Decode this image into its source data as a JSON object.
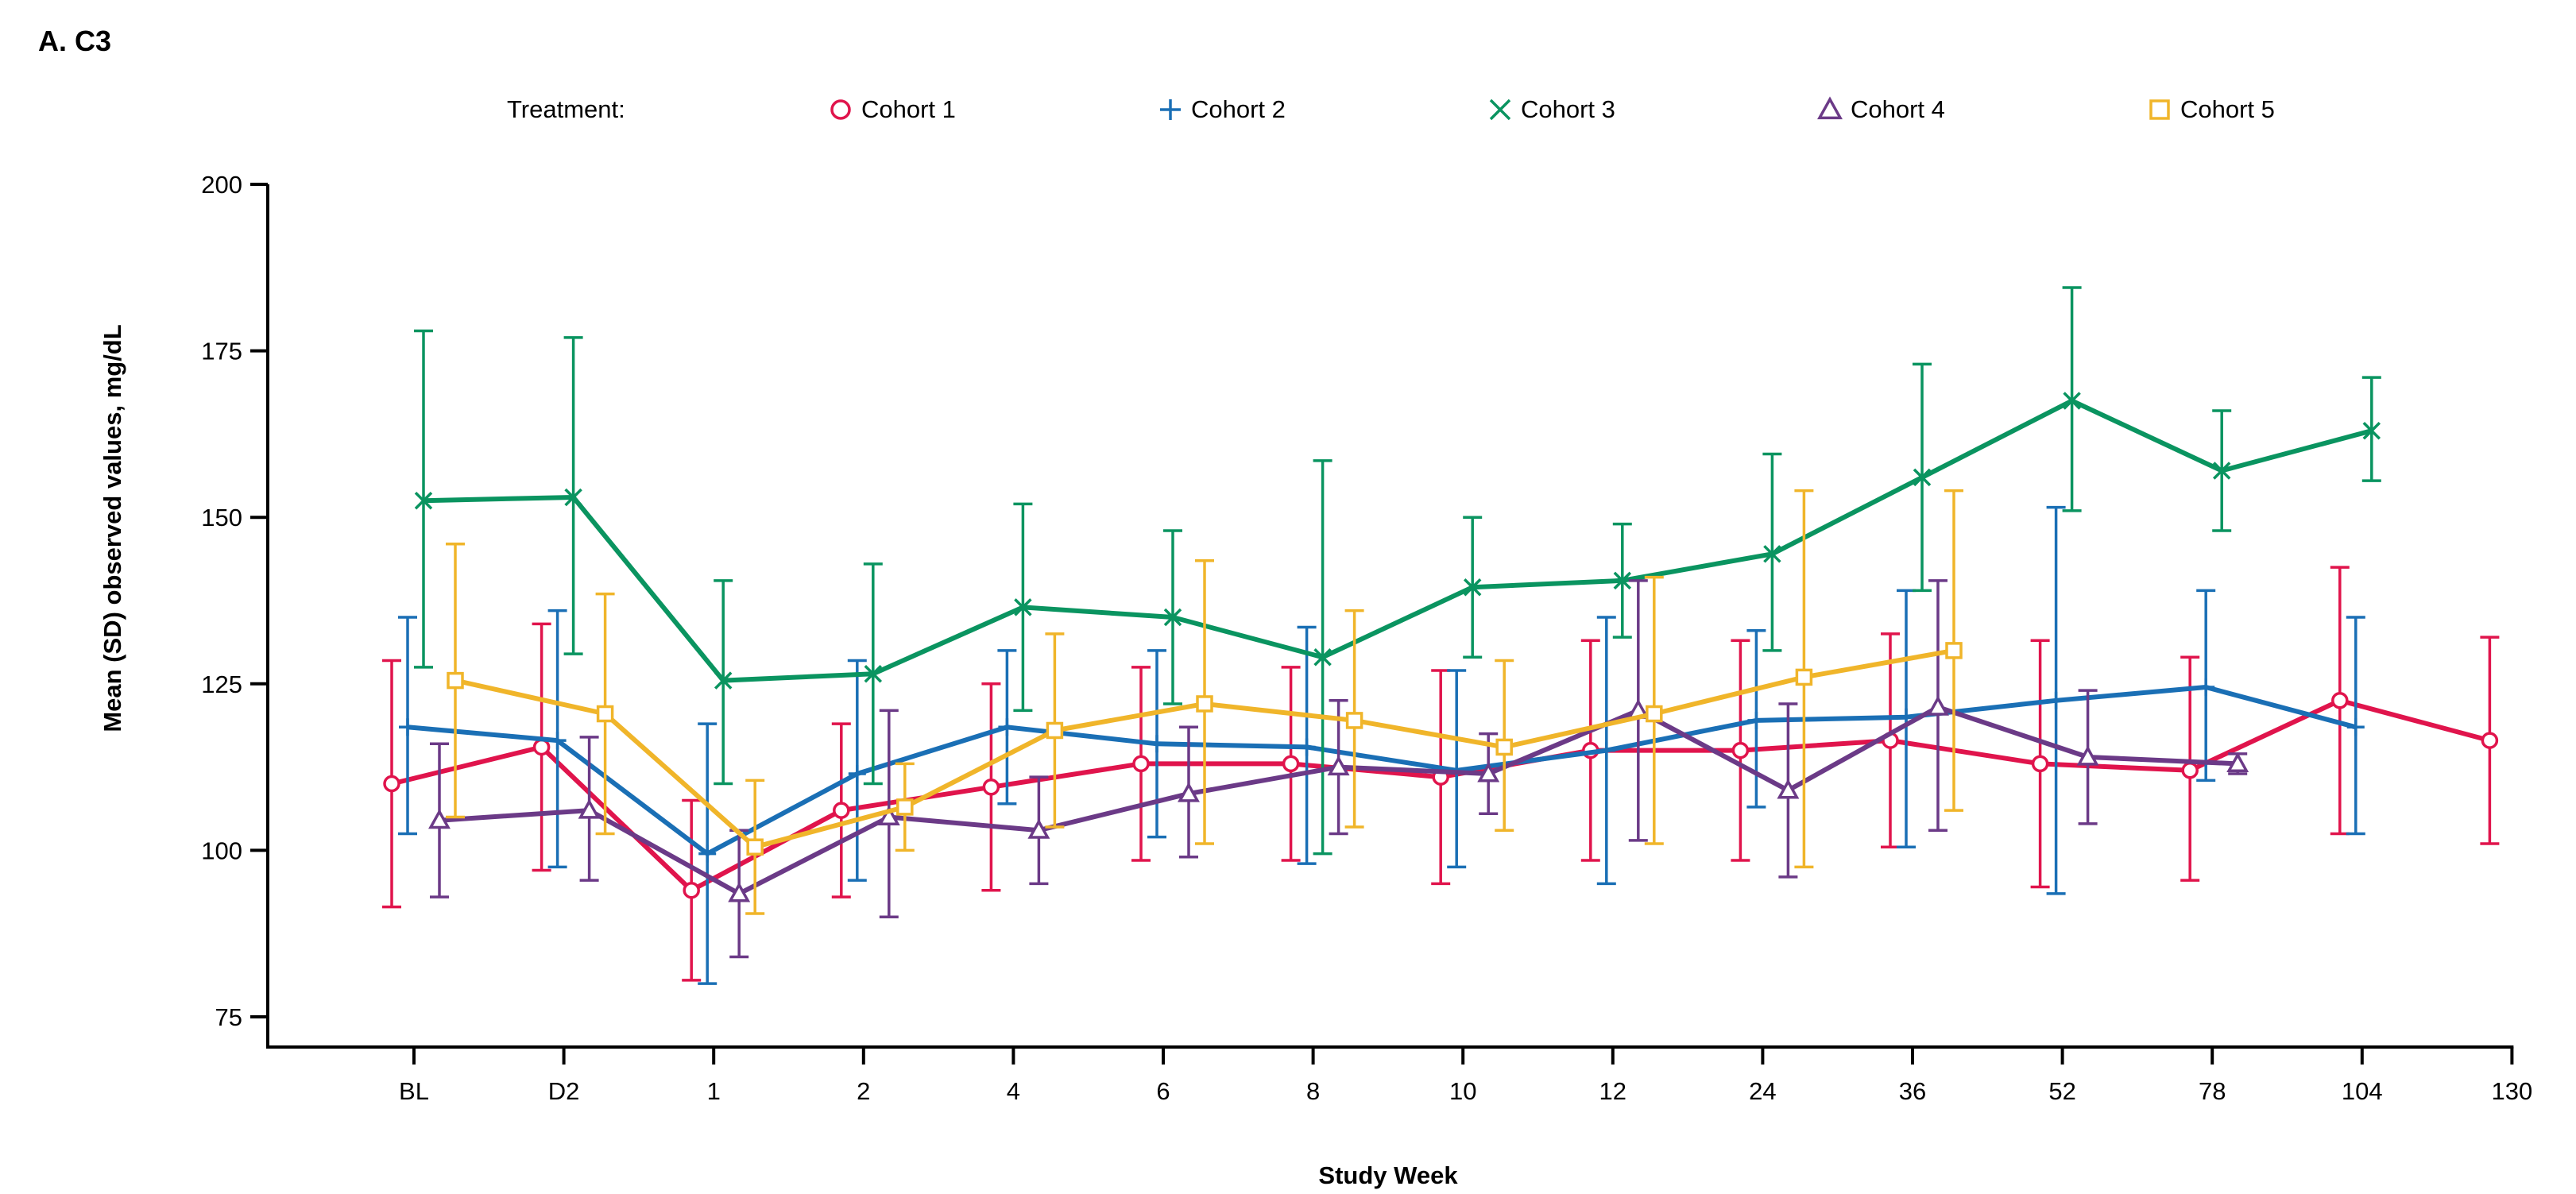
{
  "chart_data": {
    "type": "line",
    "title": "A. C3",
    "xlabel": "Study Week",
    "ylabel": "Mean (SD) observed values, mg/dL",
    "ylim": [
      75,
      200
    ],
    "yticks": [
      75,
      100,
      125,
      150,
      175,
      200
    ],
    "categories": [
      "BL",
      "D2",
      "1",
      "2",
      "4",
      "6",
      "8",
      "10",
      "12",
      "24",
      "36",
      "52",
      "78",
      "104",
      "130"
    ],
    "legend": {
      "placement": "top",
      "title": "Treatment:"
    },
    "series": [
      {
        "name": "Cohort 1",
        "color": "#E0144C",
        "marker": "circle",
        "values": [
          110,
          115.5,
          94,
          106,
          109.5,
          113,
          113,
          111,
          115,
          115,
          116.5,
          113,
          112,
          122.5,
          116.5
        ],
        "low": [
          91.5,
          97,
          80.5,
          93,
          94,
          98.5,
          98.5,
          95,
          98.5,
          98.5,
          100.5,
          94.5,
          95.5,
          102.5,
          101
        ],
        "high": [
          128.5,
          134,
          107.5,
          119,
          125,
          127.5,
          127.5,
          127,
          131.5,
          131.5,
          132.5,
          131.5,
          129,
          142.5,
          132
        ]
      },
      {
        "name": "Cohort 2",
        "color": "#1A6FB5",
        "marker": "plus",
        "values": [
          118.5,
          116.5,
          99.5,
          111.5,
          118.5,
          116,
          115.5,
          112,
          115,
          119.5,
          120,
          122.5,
          124.5,
          118.5,
          null
        ],
        "low": [
          102.5,
          97.5,
          80,
          95.5,
          107,
          102,
          98,
          97.5,
          95,
          106.5,
          100.5,
          93.5,
          110.5,
          102.5,
          null
        ],
        "high": [
          135,
          136,
          119,
          128.5,
          130,
          130,
          133.5,
          127,
          135,
          133,
          139,
          151.5,
          139,
          135,
          null
        ]
      },
      {
        "name": "Cohort 3",
        "color": "#0A9460",
        "marker": "x",
        "values": [
          152.5,
          153,
          125.5,
          126.5,
          136.5,
          135,
          129,
          139.5,
          140.5,
          144.5,
          156,
          167.5,
          157,
          163,
          null
        ],
        "low": [
          127.5,
          129.5,
          110,
          110,
          121,
          122,
          99.5,
          129,
          132,
          130,
          139,
          151,
          148,
          155.5,
          null
        ],
        "high": [
          178,
          177,
          140.5,
          143,
          152,
          148,
          158.5,
          150,
          149,
          159.5,
          173,
          184.5,
          166,
          171,
          null
        ]
      },
      {
        "name": "Cohort 4",
        "color": "#6B3A87",
        "marker": "triangle",
        "values": [
          104.5,
          106,
          93.5,
          105,
          103,
          108.5,
          112.5,
          111.5,
          121,
          109,
          121.5,
          114,
          113,
          null,
          null
        ],
        "low": [
          93,
          95.5,
          84,
          90,
          95,
          99,
          102.5,
          105.5,
          101.5,
          96,
          103,
          104,
          111.5,
          null,
          null
        ],
        "high": [
          116,
          117,
          103,
          121,
          111,
          118.5,
          122.5,
          117.5,
          140.5,
          122,
          140.5,
          124,
          114.5,
          null,
          null
        ]
      },
      {
        "name": "Cohort 5",
        "color": "#F0B52A",
        "marker": "square",
        "values": [
          125.5,
          120.5,
          100.5,
          106.5,
          118,
          122,
          119.5,
          115.5,
          120.5,
          126,
          130,
          null,
          null,
          null,
          null
        ],
        "low": [
          105,
          102.5,
          90.5,
          100,
          103.5,
          101,
          103.5,
          103,
          101,
          97.5,
          106,
          null,
          null,
          null,
          null
        ],
        "high": [
          146,
          138.5,
          110.5,
          113,
          132.5,
          143.5,
          136,
          128.5,
          141,
          154,
          154,
          null,
          null,
          null,
          null
        ]
      }
    ]
  }
}
